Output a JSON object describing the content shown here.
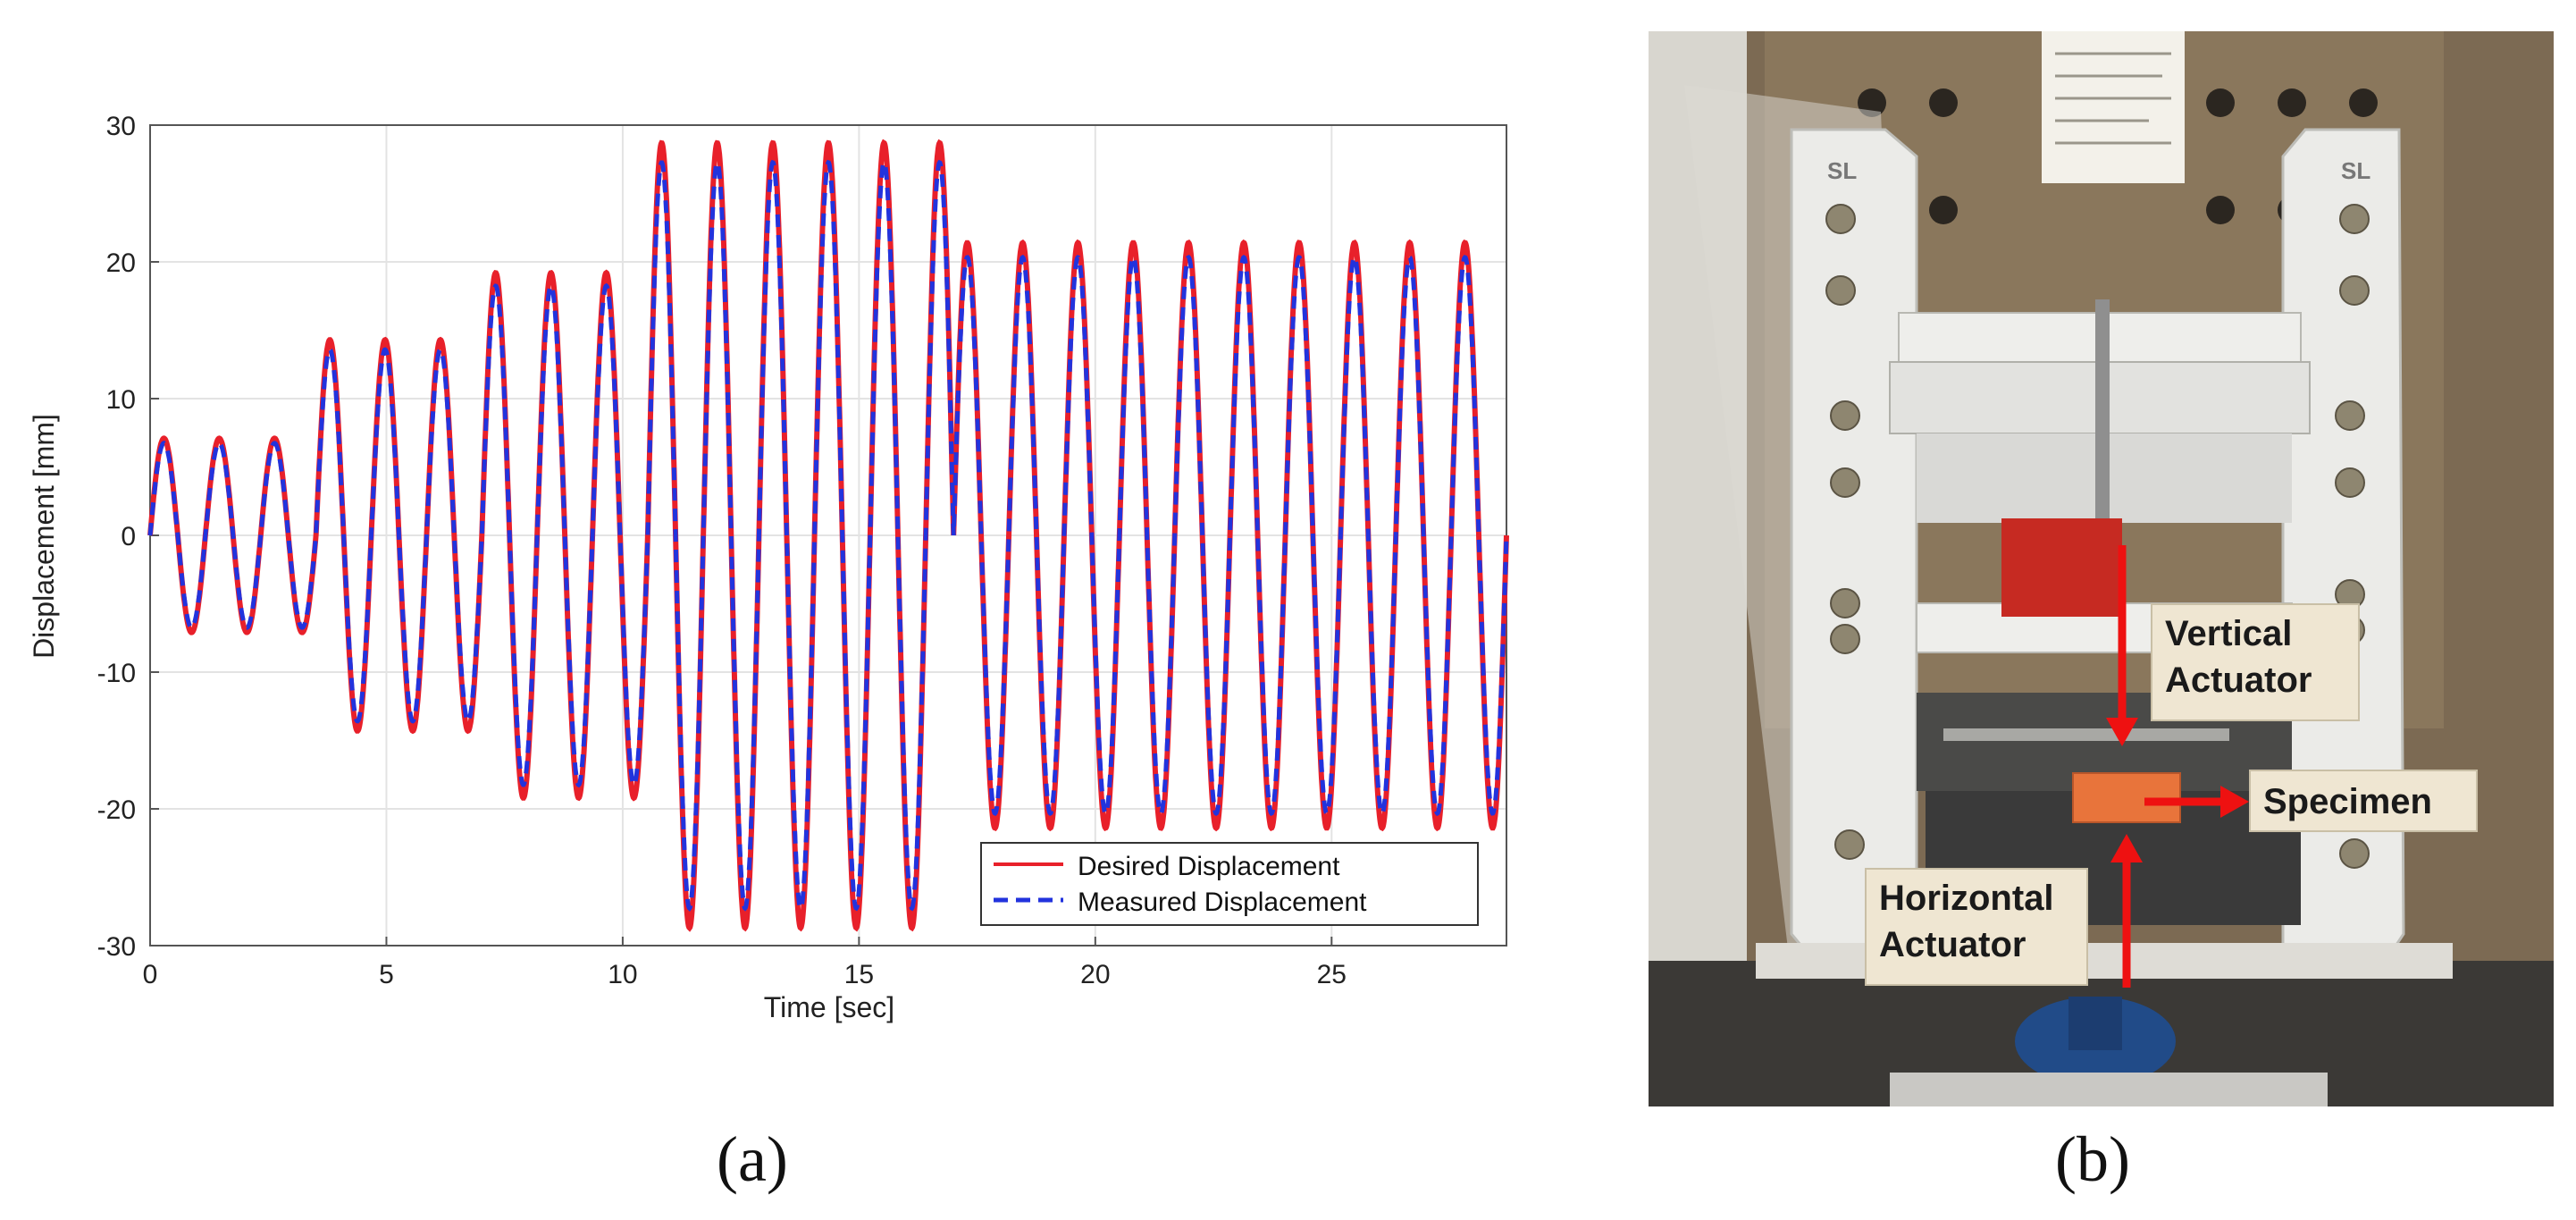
{
  "panels": {
    "a_label": "(a)",
    "b_label": "(b)"
  },
  "chart_data": {
    "type": "line",
    "xlabel": "Time [sec]",
    "ylabel": "Displacement [mm]",
    "xlim": [
      0,
      28.7
    ],
    "ylim": [
      -30,
      30
    ],
    "xticks": [
      0,
      5,
      10,
      15,
      20,
      25
    ],
    "yticks": [
      30,
      20,
      10,
      0,
      -10,
      -20,
      -30
    ],
    "grid": true,
    "legend_position": "bottom-right",
    "signal_segments": [
      {
        "t_start": 0.0,
        "t_end": 3.51,
        "amplitude": 7.1,
        "cycles": 3
      },
      {
        "t_start": 3.51,
        "t_end": 7.02,
        "amplitude": 14.3,
        "cycles": 3
      },
      {
        "t_start": 7.02,
        "t_end": 10.53,
        "amplitude": 19.2,
        "cycles": 3
      },
      {
        "t_start": 10.53,
        "t_end": 17.0,
        "amplitude": 28.7,
        "cycles": 5.5
      },
      {
        "t_start": 17.0,
        "t_end": 28.7,
        "amplitude": 21.4,
        "cycles": 10
      }
    ],
    "series": [
      {
        "name": "Desired Displacement",
        "color": "#e8202a",
        "style": "solid",
        "scale": 1.0
      },
      {
        "name": "Measured Displacement",
        "color": "#2233dd",
        "style": "dashed",
        "scale": 0.95
      }
    ]
  },
  "annotations": {
    "vertical_line1": "Vertical",
    "vertical_line2": "Actuator",
    "specimen": "Specimen",
    "horizontal_line1": "Horizontal",
    "horizontal_line2": "Actuator",
    "logo_left": "SL",
    "logo_right": "SL"
  },
  "colors": {
    "arrow": "#ee1111",
    "specimen": "#e8743b",
    "frame": "#e9e9e6"
  }
}
